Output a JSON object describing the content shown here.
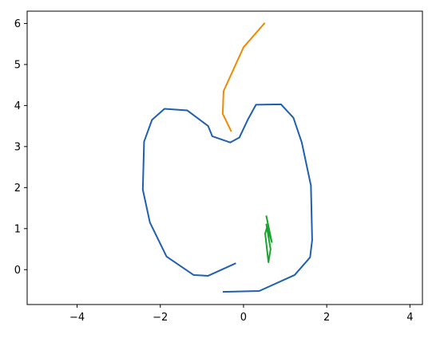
{
  "chart_data": {
    "type": "line",
    "title": "",
    "xlabel": "",
    "ylabel": "",
    "xlim": [
      -5.2,
      4.3
    ],
    "ylim": [
      -0.85,
      6.3
    ],
    "xticks": [
      -4,
      -2,
      0,
      2,
      4
    ],
    "yticks": [
      0,
      1,
      2,
      3,
      4,
      5,
      6
    ],
    "xtick_labels": [
      "−4",
      "−2",
      "0",
      "2",
      "4"
    ],
    "ytick_labels": [
      "0",
      "1",
      "2",
      "3",
      "4",
      "5",
      "6"
    ],
    "grid": false,
    "legend": false,
    "series": [
      {
        "color": "#1f5fb0",
        "points": [
          [
            -0.2,
            0.15
          ],
          [
            -0.85,
            -0.15
          ],
          [
            -1.2,
            -0.13
          ],
          [
            -1.85,
            0.32
          ],
          [
            -2.25,
            1.15
          ],
          [
            -2.42,
            1.95
          ],
          [
            -2.39,
            3.12
          ],
          [
            -2.2,
            3.65
          ],
          [
            -1.9,
            3.92
          ],
          [
            -1.35,
            3.88
          ],
          [
            -0.85,
            3.5
          ],
          [
            -0.75,
            3.25
          ],
          [
            -0.32,
            3.1
          ],
          [
            -0.1,
            3.22
          ],
          [
            0.1,
            3.65
          ],
          [
            0.3,
            4.02
          ],
          [
            0.9,
            4.03
          ],
          [
            1.2,
            3.7
          ],
          [
            1.4,
            3.1
          ],
          [
            1.62,
            2.05
          ],
          [
            1.65,
            0.72
          ],
          [
            1.6,
            0.3
          ],
          [
            1.23,
            -0.13
          ],
          [
            0.38,
            -0.52
          ],
          [
            -0.48,
            -0.54
          ]
        ]
      },
      {
        "color": "#f08a00",
        "points": [
          [
            0.5,
            6.0
          ],
          [
            0.0,
            5.42
          ],
          [
            -0.48,
            4.35
          ],
          [
            -0.5,
            3.8
          ],
          [
            -0.3,
            3.38
          ]
        ]
      },
      {
        "color": "#17a52e",
        "points": [
          [
            0.55,
            1.3
          ],
          [
            0.68,
            0.67
          ],
          [
            0.57,
            1.05
          ],
          [
            0.52,
            0.88
          ],
          [
            0.6,
            0.18
          ],
          [
            0.65,
            0.5
          ],
          [
            0.55,
            1.1
          ]
        ]
      }
    ]
  }
}
